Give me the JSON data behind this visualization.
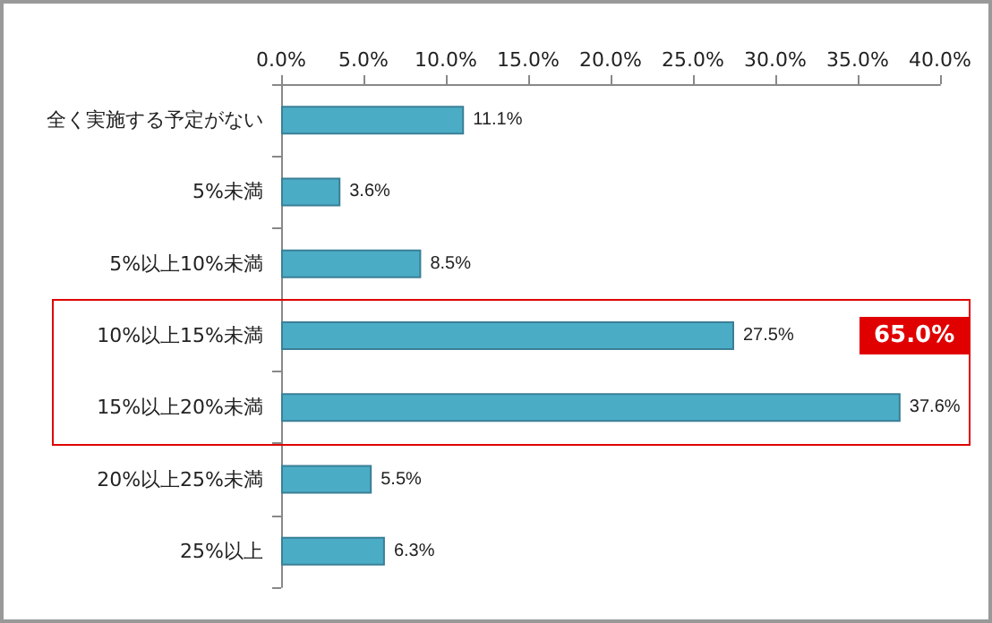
{
  "chart_data": {
    "type": "bar",
    "orientation": "horizontal",
    "categories": [
      "全く実施する予定がない",
      "5%未満",
      "5%以上10%未満",
      "10%以上15%未満",
      "15%以上20%未満",
      "20%以上25%未満",
      "25%以上"
    ],
    "values": [
      11.1,
      3.6,
      8.5,
      27.5,
      37.6,
      5.5,
      6.3
    ],
    "value_labels": [
      "11.1%",
      "3.6%",
      "8.5%",
      "27.5%",
      "37.6%",
      "5.5%",
      "6.3%"
    ],
    "color": "#4bacc6",
    "xlim": [
      0,
      40
    ],
    "xticks": [
      {
        "value": 0,
        "label": "0.0%"
      },
      {
        "value": 5,
        "label": "5.0%"
      },
      {
        "value": 10,
        "label": "10.0%"
      },
      {
        "value": 15,
        "label": "15.0%"
      },
      {
        "value": 20,
        "label": "20.0%"
      },
      {
        "value": 25,
        "label": "25.0%"
      },
      {
        "value": 30,
        "label": "30.0%"
      },
      {
        "value": 35,
        "label": "35.0%"
      },
      {
        "value": 40,
        "label": "40.0%"
      }
    ],
    "grid": false,
    "annotations": [
      "65.0%"
    ]
  }
}
